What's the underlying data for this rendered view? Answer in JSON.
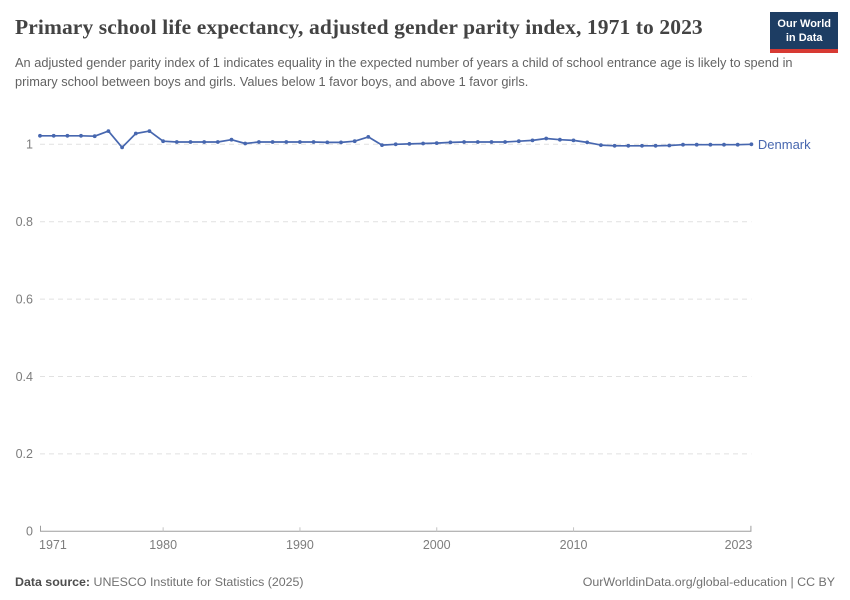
{
  "header": {
    "title": "Primary school life expectancy, adjusted gender parity index, 1971 to 2023",
    "subtitle": "An adjusted gender parity index of 1 indicates equality in the expected number of years a child of school entrance age is likely to spend in primary school between boys and girls. Values below 1 favor boys, and above 1 favor girls.",
    "logo": {
      "line1": "Our World",
      "line2": "in Data",
      "bg_color": "#1d3d63",
      "bar_color": "#d73a33"
    }
  },
  "chart_data": {
    "type": "line",
    "title": "Primary school life expectancy, adjusted gender parity index, 1971 to 2023",
    "xlabel": "",
    "ylabel": "",
    "xlim": [
      1971,
      2023
    ],
    "ylim": [
      0,
      1.063
    ],
    "x_ticks": [
      1971,
      1980,
      1990,
      2000,
      2010,
      2023
    ],
    "y_ticks": [
      0,
      0.2,
      0.4,
      0.6,
      0.8,
      1
    ],
    "grid": "horizontal-dashed",
    "legend": "line-end-label",
    "series": [
      {
        "name": "Denmark",
        "color": "#4767af",
        "x": [
          1971,
          1972,
          1973,
          1974,
          1975,
          1976,
          1977,
          1978,
          1979,
          1980,
          1981,
          1982,
          1983,
          1984,
          1985,
          1986,
          1987,
          1988,
          1989,
          1990,
          1991,
          1992,
          1993,
          1994,
          1995,
          1996,
          1997,
          1998,
          1999,
          2000,
          2001,
          2002,
          2003,
          2004,
          2005,
          2006,
          2007,
          2008,
          2009,
          2010,
          2011,
          2012,
          2013,
          2014,
          2015,
          2016,
          2017,
          2018,
          2019,
          2020,
          2021,
          2022,
          2023
        ],
        "values": [
          1.022,
          1.022,
          1.022,
          1.022,
          1.021,
          1.034,
          0.992,
          1.028,
          1.034,
          1.008,
          1.006,
          1.006,
          1.006,
          1.006,
          1.012,
          1.002,
          1.006,
          1.006,
          1.006,
          1.006,
          1.006,
          1.005,
          1.005,
          1.008,
          1.019,
          0.998,
          1.0,
          1.001,
          1.002,
          1.003,
          1.005,
          1.006,
          1.006,
          1.006,
          1.006,
          1.008,
          1.01,
          1.015,
          1.012,
          1.01,
          1.005,
          0.998,
          0.996,
          0.996,
          0.996,
          0.996,
          0.997,
          0.999,
          0.999,
          0.999,
          0.999,
          0.999,
          1.0
        ]
      }
    ]
  },
  "footer": {
    "source_label": "Data source:",
    "source_text": " UNESCO Institute for Statistics (2025)",
    "link_text": "OurWorldinData.org/global-education | CC BY"
  }
}
